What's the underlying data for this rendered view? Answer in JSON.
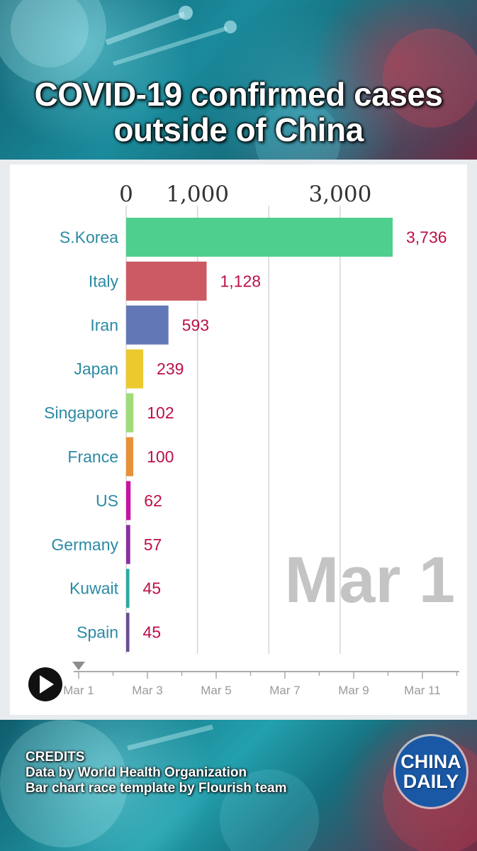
{
  "title": [
    "COVID-19 confirmed cases",
    "outside of China"
  ],
  "chart_data": {
    "type": "bar",
    "orientation": "horizontal",
    "categories": [
      "S.Korea",
      "Italy",
      "Iran",
      "Japan",
      "Singapore",
      "France",
      "US",
      "Germany",
      "Kuwait",
      "Spain"
    ],
    "values": [
      3736,
      1128,
      593,
      239,
      102,
      100,
      62,
      57,
      45,
      45
    ],
    "value_labels": [
      "3,736",
      "1,128",
      "593",
      "239",
      "102",
      "100",
      "62",
      "57",
      "45",
      "45"
    ],
    "colors": [
      "#4fcf8e",
      "#cb5a64",
      "#6278b6",
      "#ecc92e",
      "#9fdc78",
      "#e8913a",
      "#c514a4",
      "#8c2ea0",
      "#2aaaa0",
      "#6b4c95"
    ],
    "x_ticks": [
      0,
      1000,
      2000,
      3000
    ],
    "x_tick_labels": [
      "0",
      "1,000",
      "",
      "3,000"
    ],
    "xlim": [
      0,
      3900
    ],
    "grid": true,
    "current_date": "Mar 1",
    "timeline": {
      "labels": [
        "Mar 1",
        "Mar 3",
        "Mar 5",
        "Mar 7",
        "Mar 9",
        "Mar 11"
      ],
      "position": "Mar 1",
      "state": "paused"
    },
    "label_color": "#2b8aa3",
    "value_color": "#bb1146"
  },
  "credits": {
    "heading": "CREDITS",
    "line1": "Data by World Health Organization",
    "line2": "Bar chart race template by Flourish team"
  },
  "logo": {
    "line1": "CHINA",
    "line2": "DAILY"
  }
}
